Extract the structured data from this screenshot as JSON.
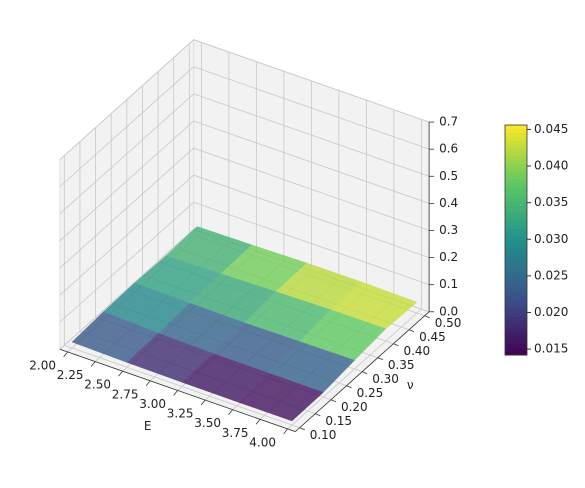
{
  "chart_data": {
    "type": "surface",
    "x_label": "E",
    "y_label": "ν",
    "x": [
      2.0,
      2.5,
      3.0,
      3.5,
      4.0
    ],
    "y": [
      0.1,
      0.2,
      0.3,
      0.4,
      0.5
    ],
    "z": [
      [
        0.022,
        0.018,
        0.016,
        0.015,
        0.015
      ],
      [
        0.03,
        0.022,
        0.018,
        0.017,
        0.017
      ],
      [
        0.033,
        0.03,
        0.028,
        0.03,
        0.032
      ],
      [
        0.03,
        0.035,
        0.04,
        0.044,
        0.045
      ],
      [
        0.035,
        0.038,
        0.042,
        0.043,
        0.04
      ]
    ],
    "colormap": "viridis",
    "alpha": 0.8,
    "xlim": [
      2.0,
      4.0
    ],
    "ylim": [
      0.1,
      0.5
    ],
    "zlim": [
      0,
      0.7
    ],
    "xticks": [
      {
        "value": 2.0,
        "label": "2.00"
      },
      2.25,
      {
        "value": 2.5,
        "label": "2.50"
      },
      2.75,
      {
        "value": 3.0,
        "label": "3.00"
      },
      3.25,
      {
        "value": 3.5,
        "label": "3.50"
      },
      3.75,
      {
        "value": 4.0,
        "label": "4.00"
      }
    ],
    "yticks": [
      {
        "value": 0.1,
        "label": "0.10"
      },
      0.15,
      {
        "value": 0.2,
        "label": "0.20"
      },
      0.25,
      {
        "value": 0.3,
        "label": "0.30"
      },
      0.35,
      {
        "value": 0.4,
        "label": "0.40"
      },
      0.45,
      {
        "value": 0.5,
        "label": "0.50"
      }
    ],
    "zticks": [
      {
        "value": 0,
        "label": "0.0"
      },
      0.1,
      0.2,
      0.3,
      0.4,
      0.5,
      0.6,
      0.7
    ],
    "colorbar": {
      "lim": [
        0.0142,
        0.0456
      ],
      "ticks": [
        0.015,
        {
          "value": 0.02,
          "label": "0.020"
        },
        0.025,
        {
          "value": 0.03,
          "label": "0.030"
        },
        0.035,
        {
          "value": 0.04,
          "label": "0.040"
        },
        0.045
      ]
    },
    "grid": true
  }
}
